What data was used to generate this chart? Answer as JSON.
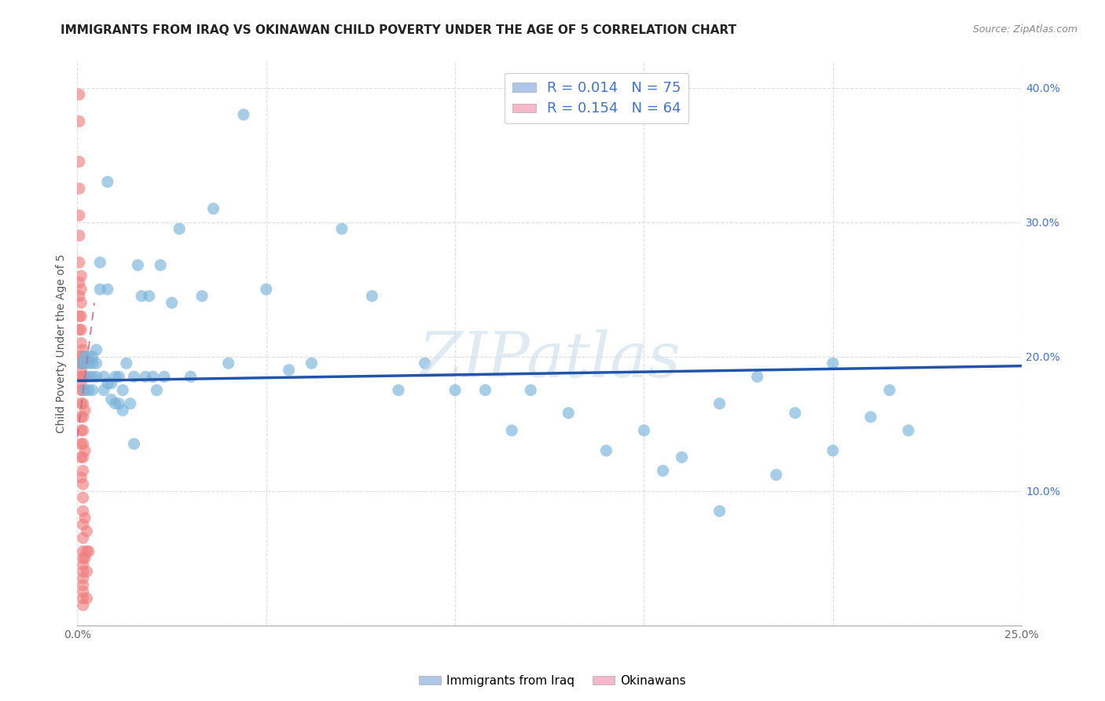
{
  "title": "IMMIGRANTS FROM IRAQ VS OKINAWAN CHILD POVERTY UNDER THE AGE OF 5 CORRELATION CHART",
  "source": "Source: ZipAtlas.com",
  "ylabel": "Child Poverty Under the Age of 5",
  "xlim": [
    0,
    0.25
  ],
  "ylim": [
    0,
    0.42
  ],
  "xticks": [
    0.0,
    0.05,
    0.1,
    0.15,
    0.2,
    0.25
  ],
  "yticks": [
    0.0,
    0.1,
    0.2,
    0.3,
    0.4
  ],
  "watermark": "ZIPatlas",
  "iraq_x": [
    0.001,
    0.002,
    0.002,
    0.002,
    0.003,
    0.003,
    0.003,
    0.003,
    0.004,
    0.004,
    0.004,
    0.004,
    0.005,
    0.005,
    0.005,
    0.006,
    0.006,
    0.007,
    0.007,
    0.008,
    0.008,
    0.008,
    0.009,
    0.009,
    0.01,
    0.01,
    0.011,
    0.011,
    0.012,
    0.012,
    0.013,
    0.014,
    0.015,
    0.015,
    0.016,
    0.017,
    0.018,
    0.019,
    0.02,
    0.021,
    0.022,
    0.023,
    0.025,
    0.027,
    0.03,
    0.033,
    0.036,
    0.04,
    0.044,
    0.05,
    0.056,
    0.062,
    0.07,
    0.078,
    0.085,
    0.092,
    0.1,
    0.108,
    0.115,
    0.12,
    0.13,
    0.14,
    0.15,
    0.16,
    0.17,
    0.18,
    0.19,
    0.2,
    0.21,
    0.215,
    0.22,
    0.2,
    0.185,
    0.17,
    0.155
  ],
  "iraq_y": [
    0.195,
    0.2,
    0.195,
    0.175,
    0.2,
    0.195,
    0.185,
    0.175,
    0.2,
    0.195,
    0.185,
    0.175,
    0.205,
    0.195,
    0.185,
    0.27,
    0.25,
    0.185,
    0.175,
    0.33,
    0.25,
    0.18,
    0.18,
    0.168,
    0.185,
    0.165,
    0.185,
    0.165,
    0.175,
    0.16,
    0.195,
    0.165,
    0.185,
    0.135,
    0.268,
    0.245,
    0.185,
    0.245,
    0.185,
    0.175,
    0.268,
    0.185,
    0.24,
    0.295,
    0.185,
    0.245,
    0.31,
    0.195,
    0.38,
    0.25,
    0.19,
    0.195,
    0.295,
    0.245,
    0.175,
    0.195,
    0.175,
    0.175,
    0.145,
    0.175,
    0.158,
    0.13,
    0.145,
    0.125,
    0.165,
    0.185,
    0.158,
    0.195,
    0.155,
    0.175,
    0.145,
    0.13,
    0.112,
    0.085,
    0.115
  ],
  "okinawa_x": [
    0.0005,
    0.0005,
    0.0005,
    0.0005,
    0.0005,
    0.0005,
    0.0005,
    0.0005,
    0.0005,
    0.0005,
    0.0005,
    0.001,
    0.001,
    0.001,
    0.001,
    0.001,
    0.001,
    0.001,
    0.001,
    0.001,
    0.001,
    0.001,
    0.001,
    0.001,
    0.001,
    0.001,
    0.001,
    0.001,
    0.001,
    0.0015,
    0.0015,
    0.0015,
    0.0015,
    0.0015,
    0.0015,
    0.0015,
    0.0015,
    0.0015,
    0.0015,
    0.0015,
    0.0015,
    0.0015,
    0.0015,
    0.0015,
    0.0015,
    0.0015,
    0.0015,
    0.0015,
    0.0015,
    0.0015,
    0.0015,
    0.0015,
    0.0015,
    0.0015,
    0.002,
    0.002,
    0.002,
    0.002,
    0.002,
    0.0025,
    0.0025,
    0.0025,
    0.0025,
    0.003
  ],
  "okinawa_y": [
    0.395,
    0.375,
    0.345,
    0.325,
    0.305,
    0.29,
    0.27,
    0.255,
    0.245,
    0.23,
    0.22,
    0.26,
    0.25,
    0.24,
    0.23,
    0.22,
    0.21,
    0.2,
    0.195,
    0.19,
    0.185,
    0.18,
    0.175,
    0.165,
    0.155,
    0.145,
    0.135,
    0.125,
    0.11,
    0.205,
    0.2,
    0.195,
    0.185,
    0.175,
    0.165,
    0.155,
    0.145,
    0.135,
    0.125,
    0.115,
    0.105,
    0.095,
    0.085,
    0.075,
    0.065,
    0.055,
    0.045,
    0.035,
    0.025,
    0.015,
    0.02,
    0.03,
    0.04,
    0.05,
    0.185,
    0.16,
    0.13,
    0.08,
    0.05,
    0.07,
    0.055,
    0.04,
    0.02,
    0.055
  ],
  "iraq_trend_x": [
    0.0,
    0.25
  ],
  "iraq_trend_y": [
    0.182,
    0.193
  ],
  "okinawa_trend_x": [
    0.0,
    0.0045
  ],
  "okinawa_trend_y": [
    0.14,
    0.24
  ],
  "iraq_dot_color": "#7ab3d9",
  "okinawa_dot_color": "#f08080",
  "iraq_dot_edge": "#5a93b9",
  "okinawa_dot_edge": "#d06060",
  "iraq_trend_color": "#2255aa",
  "okinawa_trend_color": "#cc6688",
  "background_color": "#ffffff",
  "grid_color": "#dddddd",
  "title_fontsize": 11,
  "axis_label_fontsize": 10,
  "tick_fontsize": 10,
  "source_fontsize": 9
}
